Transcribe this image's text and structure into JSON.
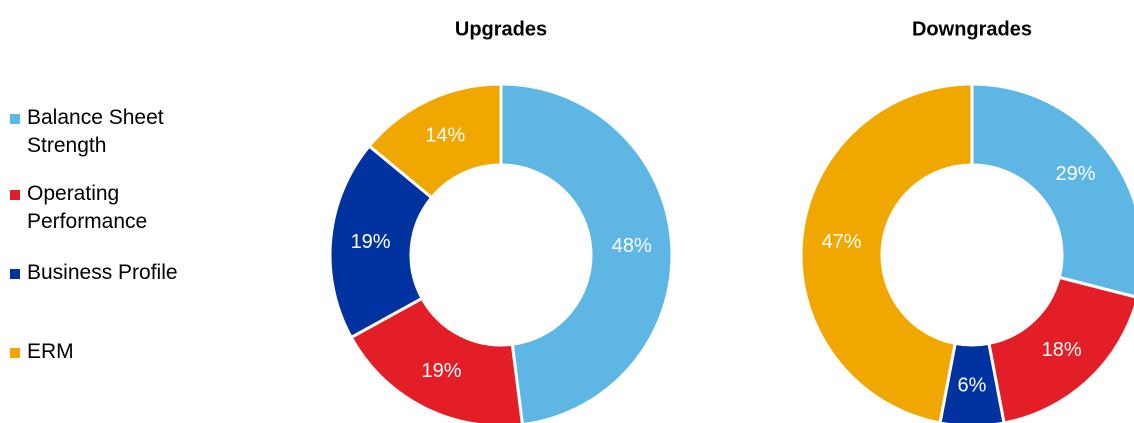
{
  "chart_data": [
    {
      "type": "pie",
      "title": "Upgrades",
      "categories": [
        "Balance Sheet Strength",
        "Operating Performance",
        "Business Profile",
        "ERM"
      ],
      "values": [
        48,
        19,
        19,
        14
      ],
      "value_labels": [
        "48%",
        "19%",
        "19%",
        "14%"
      ],
      "colors": [
        "#5eb6e4",
        "#e31e26",
        "#0033a0",
        "#f0a800"
      ]
    },
    {
      "type": "pie",
      "title": "Downgrades",
      "values": [
        29,
        18,
        6,
        47
      ],
      "value_labels": [
        "29%",
        "18%",
        "6%",
        "47%"
      ],
      "colors": [
        "#5eb6e4",
        "#e31e26",
        "#0033a0",
        "#f0a800"
      ]
    }
  ]
}
